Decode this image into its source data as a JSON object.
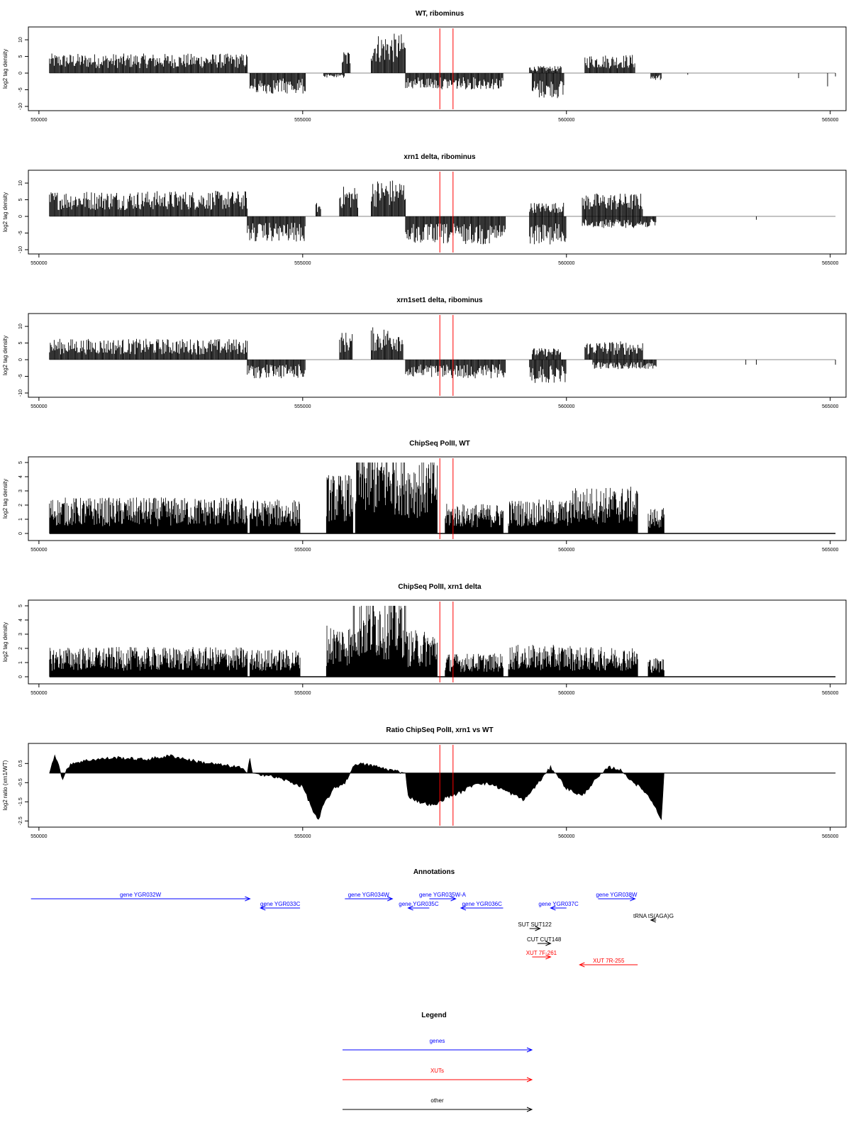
{
  "chart_data": [
    {
      "type": "bar",
      "title": "WT, ribominus",
      "ylabel": "log2 tag density",
      "xlim": [
        549800,
        565300
      ],
      "ylim": [
        -10,
        13
      ],
      "yticks": [
        "10",
        "5",
        "0",
        "-5",
        "-10"
      ],
      "xticks": [
        "550000",
        "555000",
        "560000",
        "565000"
      ],
      "red_lines_x": [
        557600,
        557850
      ],
      "profile": {
        "positive_segments": [
          {
            "from": 550200,
            "to": 553950,
            "level": 4.2
          },
          {
            "from": 555750,
            "to": 555900,
            "level": 5.0
          },
          {
            "from": 556300,
            "to": 556950,
            "level": 8.5
          },
          {
            "from": 559300,
            "to": 559900,
            "level": 1.5
          },
          {
            "from": 560350,
            "to": 561300,
            "level": 4.0
          }
        ],
        "negative_segments": [
          {
            "from": 554000,
            "to": 555050,
            "level": -4.5
          },
          {
            "from": 555400,
            "to": 555800,
            "level": -1.0
          },
          {
            "from": 556950,
            "to": 558800,
            "level": -3.5
          },
          {
            "from": 559350,
            "to": 559950,
            "level": -5.5
          },
          {
            "from": 561600,
            "to": 561800,
            "level": -1.5
          }
        ],
        "spikes": [
          [
            562300,
            -0.5
          ],
          [
            564400,
            -1.5
          ],
          [
            564950,
            -4.0
          ],
          [
            565100,
            -1.0
          ]
        ]
      }
    },
    {
      "type": "bar",
      "title": "xrn1 delta, ribominus",
      "ylabel": "log2 tag density",
      "xlim": [
        549800,
        565300
      ],
      "ylim": [
        -10,
        13
      ],
      "yticks": [
        "10",
        "5",
        "0",
        "-5",
        "-10"
      ],
      "xticks": [
        "550000",
        "555000",
        "560000",
        "565000"
      ],
      "red_lines_x": [
        557600,
        557850
      ],
      "profile": {
        "positive_segments": [
          {
            "from": 550200,
            "to": 553950,
            "level": 5.5
          },
          {
            "from": 555250,
            "to": 555350,
            "level": 3.0
          },
          {
            "from": 555700,
            "to": 556050,
            "level": 6.5
          },
          {
            "from": 556300,
            "to": 556950,
            "level": 8.0
          },
          {
            "from": 559300,
            "to": 559950,
            "level": 3.0
          },
          {
            "from": 560300,
            "to": 561450,
            "level": 5.0
          }
        ],
        "negative_segments": [
          {
            "from": 553950,
            "to": 555050,
            "level": -5.5
          },
          {
            "from": 556950,
            "to": 558850,
            "level": -6.0
          },
          {
            "from": 559300,
            "to": 560000,
            "level": -6.0
          },
          {
            "from": 560300,
            "to": 561700,
            "level": -2.5
          }
        ],
        "spikes": [
          [
            563600,
            -1.0
          ]
        ]
      }
    },
    {
      "type": "bar",
      "title": "xrn1set1 delta, ribominus",
      "ylabel": "log2 tag density",
      "xlim": [
        549800,
        565300
      ],
      "ylim": [
        -10,
        13
      ],
      "yticks": [
        "10",
        "5",
        "0",
        "-5",
        "-10"
      ],
      "xticks": [
        "550000",
        "555000",
        "560000",
        "565000"
      ],
      "red_lines_x": [
        557600,
        557850
      ],
      "profile": {
        "positive_segments": [
          {
            "from": 550200,
            "to": 553950,
            "level": 4.5
          },
          {
            "from": 555700,
            "to": 555950,
            "level": 6.0
          },
          {
            "from": 556300,
            "to": 556900,
            "level": 7.0
          },
          {
            "from": 559350,
            "to": 559900,
            "level": 2.5
          },
          {
            "from": 560350,
            "to": 561450,
            "level": 4.0
          }
        ],
        "negative_segments": [
          {
            "from": 553950,
            "to": 555050,
            "level": -4.0
          },
          {
            "from": 556950,
            "to": 558850,
            "level": -4.0
          },
          {
            "from": 559300,
            "to": 560000,
            "level": -5.0
          },
          {
            "from": 560500,
            "to": 561700,
            "level": -2.0
          }
        ],
        "spikes": [
          [
            563400,
            -1.5
          ],
          [
            563600,
            -1.5
          ],
          [
            565100,
            -1.5
          ]
        ]
      }
    },
    {
      "type": "bar",
      "title": "ChipSeq PolII, WT",
      "ylabel": "log2 tag density",
      "xlim": [
        549800,
        565300
      ],
      "ylim": [
        -0.2,
        5.2
      ],
      "yticks": [
        "5",
        "4",
        "3",
        "2",
        "1",
        "0"
      ],
      "xticks": [
        "550000",
        "555000",
        "560000",
        "565000"
      ],
      "red_lines_x": [
        557600,
        557850
      ],
      "profile": {
        "segments": [
          {
            "from": 550200,
            "to": 553950,
            "level": 1.7
          },
          {
            "from": 554000,
            "to": 554950,
            "level": 1.6
          },
          {
            "from": 555450,
            "to": 555950,
            "level": 2.8
          },
          {
            "from": 556000,
            "to": 556950,
            "level": 4.2
          },
          {
            "from": 556950,
            "to": 557550,
            "level": 3.6
          },
          {
            "from": 557700,
            "to": 558800,
            "level": 1.4
          },
          {
            "from": 558900,
            "to": 560100,
            "level": 1.6
          },
          {
            "from": 560100,
            "to": 561350,
            "level": 2.2
          },
          {
            "from": 561550,
            "to": 561850,
            "level": 1.2
          }
        ]
      }
    },
    {
      "type": "bar",
      "title": "ChipSeq PolII, xrn1 delta",
      "ylabel": "log2 tag density",
      "xlim": [
        549800,
        565300
      ],
      "ylim": [
        -0.2,
        5.2
      ],
      "yticks": [
        "5",
        "4",
        "3",
        "2",
        "1",
        "0"
      ],
      "xticks": [
        "550000",
        "555000",
        "560000",
        "565000"
      ],
      "red_lines_x": [
        557600,
        557850
      ],
      "profile": {
        "segments": [
          {
            "from": 550200,
            "to": 553950,
            "level": 1.4
          },
          {
            "from": 554000,
            "to": 554950,
            "level": 1.3
          },
          {
            "from": 555450,
            "to": 555950,
            "level": 2.5
          },
          {
            "from": 555950,
            "to": 556950,
            "level": 4.0
          },
          {
            "from": 556950,
            "to": 557550,
            "level": 2.2
          },
          {
            "from": 557700,
            "to": 558800,
            "level": 1.1
          },
          {
            "from": 558900,
            "to": 560100,
            "level": 1.5
          },
          {
            "from": 560100,
            "to": 561350,
            "level": 1.4
          },
          {
            "from": 561550,
            "to": 561850,
            "level": 0.9
          }
        ]
      }
    },
    {
      "type": "area",
      "title": "Ratio ChipSeq PolII, xrn1 vs WT",
      "ylabel": "log2 ratio (xrn1/WT)",
      "xlim": [
        549800,
        565300
      ],
      "ylim": [
        -2.6,
        1.4
      ],
      "yticks": [
        "0.5",
        "-0.5",
        "-1.5",
        "-2.5"
      ],
      "xticks": [
        "550000",
        "555000",
        "560000",
        "565000"
      ],
      "red_lines_x": [
        557600,
        557850
      ],
      "baseline": 0,
      "points": [
        [
          550200,
          0
        ],
        [
          550300,
          1.0
        ],
        [
          550400,
          0.2
        ],
        [
          550450,
          -0.4
        ],
        [
          550500,
          0
        ],
        [
          550600,
          0.5
        ],
        [
          551000,
          0.7
        ],
        [
          551500,
          0.8
        ],
        [
          552000,
          0.7
        ],
        [
          552500,
          0.9
        ],
        [
          553000,
          0.6
        ],
        [
          553500,
          0.4
        ],
        [
          553800,
          0.3
        ],
        [
          553950,
          0
        ],
        [
          554000,
          0.8
        ],
        [
          554050,
          0
        ],
        [
          554300,
          -0.1
        ],
        [
          554600,
          -0.3
        ],
        [
          555000,
          -0.7
        ],
        [
          555200,
          -2.0
        ],
        [
          555300,
          -2.5
        ],
        [
          555400,
          -1.6
        ],
        [
          555600,
          -0.8
        ],
        [
          555800,
          -0.5
        ],
        [
          556000,
          0.5
        ],
        [
          556300,
          0.4
        ],
        [
          556600,
          0.2
        ],
        [
          556950,
          0
        ],
        [
          557000,
          -1.2
        ],
        [
          557200,
          -1.5
        ],
        [
          557500,
          -1.7
        ],
        [
          557700,
          -1.3
        ],
        [
          558000,
          -1.0
        ],
        [
          558300,
          -0.5
        ],
        [
          558600,
          -0.6
        ],
        [
          558900,
          -1.0
        ],
        [
          559200,
          -1.4
        ],
        [
          559500,
          -0.4
        ],
        [
          559700,
          0.3
        ],
        [
          559800,
          0
        ],
        [
          560000,
          -0.8
        ],
        [
          560300,
          -1.2
        ],
        [
          560500,
          -0.5
        ],
        [
          560800,
          0.3
        ],
        [
          561000,
          0.2
        ],
        [
          561200,
          -0.3
        ],
        [
          561500,
          -1.0
        ],
        [
          561700,
          -1.8
        ],
        [
          561800,
          -2.5
        ],
        [
          561850,
          0
        ],
        [
          565100,
          0
        ]
      ]
    }
  ],
  "annotations": {
    "title": "Annotations",
    "features": [
      {
        "label": "gene YGR032W",
        "from": 549850,
        "to": 554000,
        "direction": "right",
        "color": "#0000ff",
        "row": 0
      },
      {
        "label": "gene YGR033C",
        "from": 554200,
        "to": 554950,
        "direction": "left",
        "color": "#0000ff",
        "row": 1
      },
      {
        "label": "gene YGR034W",
        "from": 555800,
        "to": 556700,
        "direction": "right",
        "color": "#0000ff",
        "row": 0
      },
      {
        "label": "gene YGR035W-A",
        "from": 557400,
        "to": 557900,
        "direction": "right",
        "color": "#0000ff",
        "row": 0
      },
      {
        "label": "gene YGR035C",
        "from": 557000,
        "to": 557400,
        "direction": "left",
        "color": "#0000ff",
        "row": 1
      },
      {
        "label": "gene YGR036C",
        "from": 558000,
        "to": 558800,
        "direction": "left",
        "color": "#0000ff",
        "row": 1
      },
      {
        "label": "gene YGR037C",
        "from": 559700,
        "to": 560000,
        "direction": "left",
        "color": "#0000ff",
        "row": 1
      },
      {
        "label": "gene YGR038W",
        "from": 560600,
        "to": 561300,
        "direction": "right",
        "color": "#0000ff",
        "row": 0
      },
      {
        "label": "tRNA tS(AGA)G",
        "from": 561600,
        "to": 561700,
        "direction": "left",
        "color": "#000000",
        "row": 2
      },
      {
        "label": "SUT SUT122",
        "from": 559300,
        "to": 559500,
        "direction": "right",
        "color": "#000000",
        "row": 3
      },
      {
        "label": "CUT CUT148",
        "from": 559450,
        "to": 559700,
        "direction": "right",
        "color": "#000000",
        "row": 4
      },
      {
        "label": "XUT 7F-261",
        "from": 559350,
        "to": 559700,
        "direction": "right",
        "color": "#ff0000",
        "row": 5
      },
      {
        "label": "XUT 7R-255",
        "from": 560250,
        "to": 561350,
        "direction": "left",
        "color": "#ff0000",
        "row": 6
      }
    ]
  },
  "legend": {
    "title": "Legend",
    "items": [
      {
        "label": "genes",
        "color": "#0000ff"
      },
      {
        "label": "XUTs",
        "color": "#ff0000"
      },
      {
        "label": "other",
        "color": "#000000"
      }
    ]
  }
}
